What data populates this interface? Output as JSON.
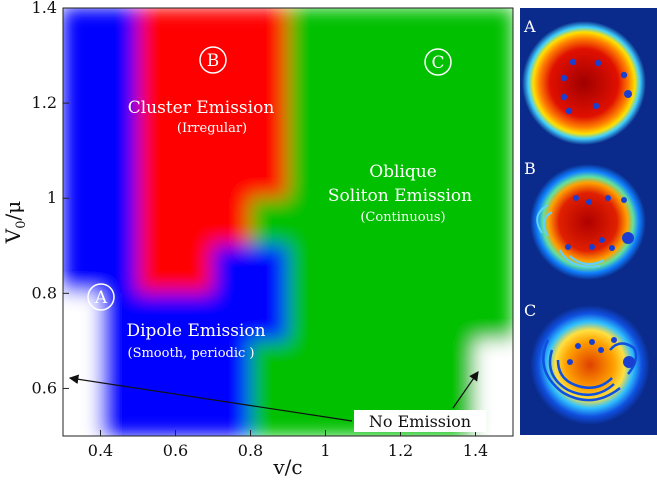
{
  "chart_data": {
    "type": "heatmap",
    "title": "",
    "xlabel": "v/c",
    "ylabel": "V0/μ",
    "xlim": [
      0.3,
      1.5
    ],
    "ylim": [
      0.5,
      1.4
    ],
    "x_ticks": [
      "0.4",
      "0.6",
      "0.8",
      "1",
      "1.2",
      "1.4"
    ],
    "y_ticks": [
      "0.6",
      "0.8",
      "1",
      "1.2",
      "1.4"
    ],
    "x_tick_values": [
      0.4,
      0.6,
      0.8,
      1.0,
      1.2,
      1.4
    ],
    "y_tick_values": [
      0.6,
      0.8,
      1.0,
      1.2,
      1.4
    ],
    "colors": {
      "dipole": "#0000ff",
      "cluster": "#ff0000",
      "oblique": "#00c000",
      "none": "#ffffff"
    },
    "regions": [
      {
        "key": "dipole",
        "marker": "A",
        "label": "Dipole Emission",
        "sublabel": "(Smooth, periodic )"
      },
      {
        "key": "cluster",
        "marker": "B",
        "label": "Cluster Emission",
        "sublabel": "(Irregular)"
      },
      {
        "key": "oblique",
        "marker": "C",
        "label_lines": [
          "Oblique",
          "Soliton Emission"
        ],
        "sublabel": "(Continuous)"
      },
      {
        "key": "none",
        "label": "No Emission"
      }
    ],
    "grid_x": [
      0.3,
      0.4,
      0.5,
      0.6,
      0.7,
      0.8,
      0.9,
      1.0,
      1.1,
      1.2,
      1.3,
      1.4,
      1.5
    ],
    "grid_y": [
      1.4,
      1.3,
      1.2,
      1.1,
      1.0,
      0.9,
      0.8,
      0.7,
      0.6,
      0.5
    ],
    "grid": [
      [
        "B",
        "B",
        "R",
        "R",
        "R",
        "R",
        "G",
        "G",
        "G",
        "G",
        "G",
        "G"
      ],
      [
        "B",
        "B",
        "R",
        "R",
        "R",
        "R",
        "G",
        "G",
        "G",
        "G",
        "G",
        "G"
      ],
      [
        "B",
        "B",
        "R",
        "R",
        "R",
        "R",
        "G",
        "G",
        "G",
        "G",
        "G",
        "G"
      ],
      [
        "B",
        "B",
        "R",
        "R",
        "R",
        "R",
        "G",
        "G",
        "G",
        "G",
        "G",
        "G"
      ],
      [
        "B",
        "B",
        "R",
        "R",
        "R",
        "G",
        "G",
        "G",
        "G",
        "G",
        "G",
        "G"
      ],
      [
        "B",
        "B",
        "R",
        "R",
        "B",
        "B",
        "G",
        "G",
        "G",
        "G",
        "G",
        "G"
      ],
      [
        "W",
        "B",
        "B",
        "B",
        "B",
        "B",
        "G",
        "G",
        "G",
        "G",
        "G",
        "G"
      ],
      [
        "W",
        "B",
        "B",
        "B",
        "B",
        "G",
        "G",
        "G",
        "G",
        "G",
        "G",
        "W"
      ],
      [
        "W",
        "B",
        "B",
        "B",
        "B",
        "G",
        "G",
        "G",
        "G",
        "G",
        "G",
        "W"
      ]
    ],
    "annotation": "No Emission",
    "panels": [
      {
        "letter": "A"
      },
      {
        "letter": "B"
      },
      {
        "letter": "C"
      }
    ]
  }
}
